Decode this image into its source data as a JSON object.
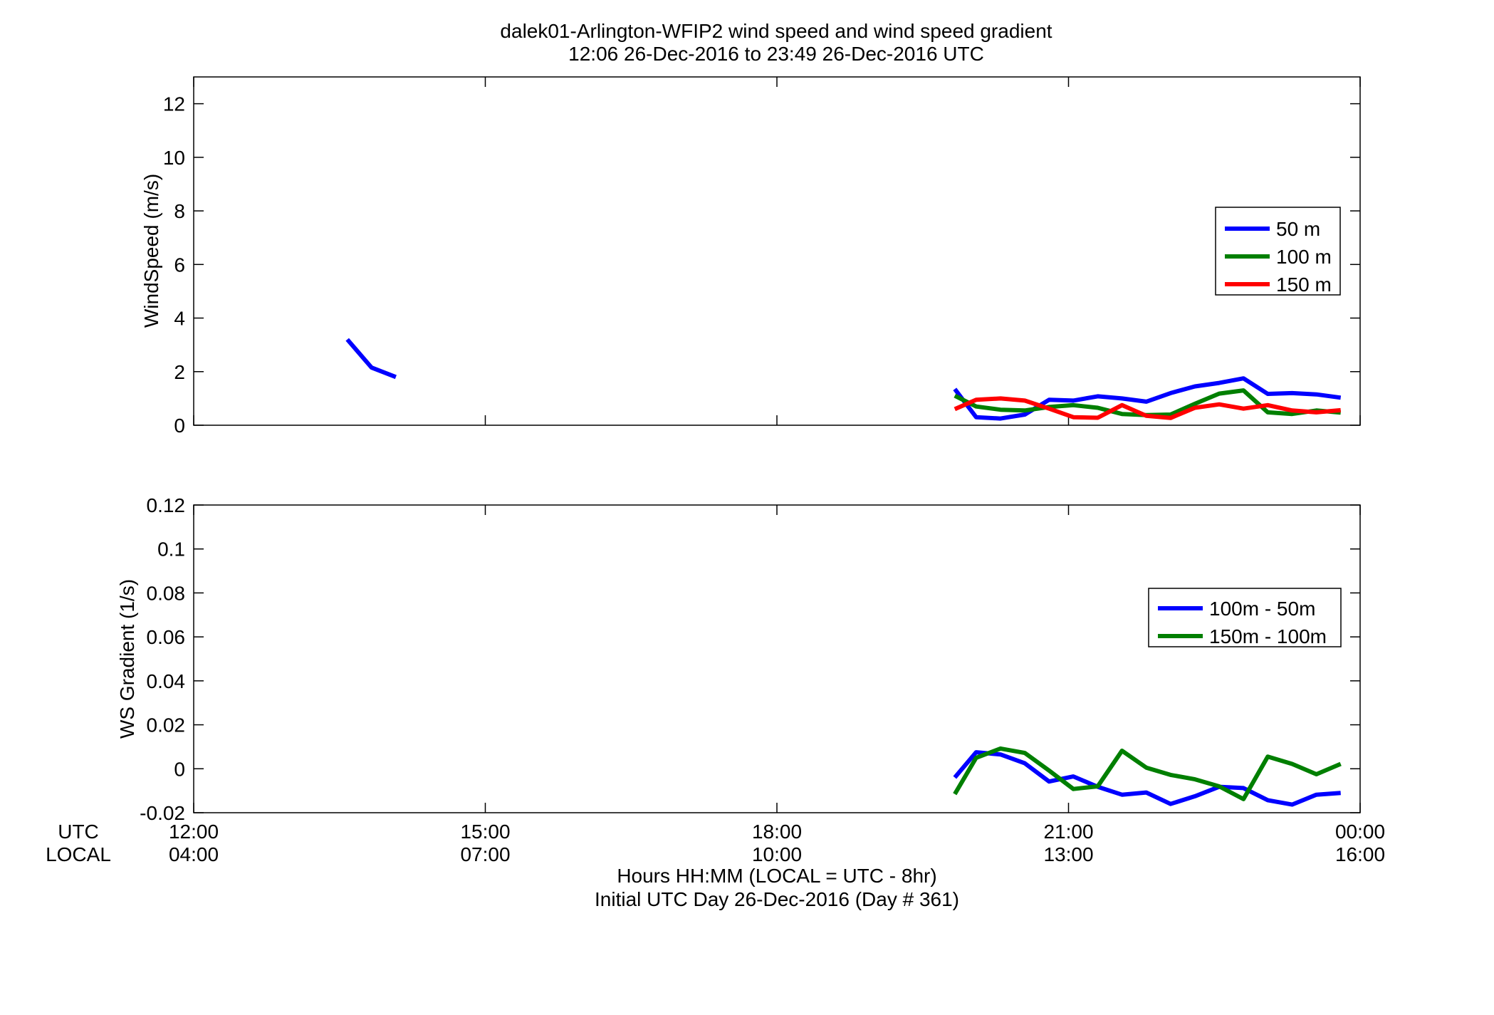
{
  "figure": {
    "title_line1": "dalek01-Arlington-WFIP2  wind speed and wind speed gradient",
    "title_line2": "12:06 26-Dec-2016 to 23:49 26-Dec-2016  UTC",
    "xlabel_line1": "Hours HH:MM  (LOCAL = UTC - 8hr)",
    "xlabel_line2": "Initial UTC Day 26-Dec-2016 (Day # 361)",
    "row_label_utc": "UTC",
    "row_label_local": "LOCAL",
    "utc_ticks": [
      "12:00",
      "15:00",
      "18:00",
      "21:00",
      "00:00"
    ],
    "local_ticks": [
      "04:00",
      "07:00",
      "10:00",
      "13:00",
      "16:00"
    ]
  },
  "colors": {
    "blue": "#0000ff",
    "green": "#007f00",
    "red": "#ff0000"
  },
  "chart_data": [
    {
      "type": "line",
      "ylabel": "WindSpeed (m/s)",
      "xlim": [
        12,
        24
      ],
      "ylim": [
        0,
        13
      ],
      "yticks": [
        0,
        2,
        4,
        6,
        8,
        10,
        12
      ],
      "ytick_labels": [
        "0",
        "2",
        "4",
        "6",
        "8",
        "10",
        "12"
      ],
      "legend_position": "right",
      "series": [
        {
          "name": "50 m",
          "color": "#0000ff",
          "segments": [
            [
              [
                13.58,
                3.2
              ],
              [
                13.83,
                2.15
              ],
              [
                14.08,
                1.8
              ]
            ],
            [
              [
                19.83,
                1.35
              ],
              [
                20.05,
                0.3
              ],
              [
                20.3,
                0.25
              ],
              [
                20.55,
                0.4
              ],
              [
                20.8,
                0.95
              ],
              [
                21.05,
                0.92
              ],
              [
                21.3,
                1.08
              ],
              [
                21.55,
                1.0
              ],
              [
                21.8,
                0.88
              ],
              [
                22.05,
                1.2
              ],
              [
                22.3,
                1.45
              ],
              [
                22.55,
                1.58
              ],
              [
                22.8,
                1.75
              ],
              [
                23.05,
                1.17
              ],
              [
                23.3,
                1.2
              ],
              [
                23.55,
                1.15
              ],
              [
                23.8,
                1.03
              ]
            ]
          ]
        },
        {
          "name": "100 m",
          "color": "#007f00",
          "segments": [
            [
              [
                19.83,
                1.1
              ],
              [
                20.05,
                0.7
              ],
              [
                20.3,
                0.58
              ],
              [
                20.55,
                0.55
              ],
              [
                20.8,
                0.68
              ],
              [
                21.05,
                0.75
              ],
              [
                21.3,
                0.65
              ],
              [
                21.55,
                0.42
              ],
              [
                21.8,
                0.38
              ],
              [
                22.05,
                0.4
              ],
              [
                22.3,
                0.8
              ],
              [
                22.55,
                1.18
              ],
              [
                22.8,
                1.3
              ],
              [
                23.05,
                0.48
              ],
              [
                23.3,
                0.42
              ],
              [
                23.55,
                0.55
              ],
              [
                23.8,
                0.47
              ]
            ]
          ]
        },
        {
          "name": "150 m",
          "color": "#ff0000",
          "segments": [
            [
              [
                19.83,
                0.6
              ],
              [
                20.05,
                0.95
              ],
              [
                20.3,
                1.0
              ],
              [
                20.55,
                0.92
              ],
              [
                20.8,
                0.62
              ],
              [
                21.05,
                0.3
              ],
              [
                21.3,
                0.28
              ],
              [
                21.55,
                0.75
              ],
              [
                21.8,
                0.35
              ],
              [
                22.05,
                0.27
              ],
              [
                22.3,
                0.65
              ],
              [
                22.55,
                0.78
              ],
              [
                22.8,
                0.62
              ],
              [
                23.05,
                0.75
              ],
              [
                23.3,
                0.55
              ],
              [
                23.55,
                0.48
              ],
              [
                23.8,
                0.56
              ]
            ]
          ]
        }
      ]
    },
    {
      "type": "line",
      "ylabel": "WS Gradient (1/s)",
      "xlim": [
        12,
        24
      ],
      "ylim": [
        -0.02,
        0.12
      ],
      "yticks": [
        -0.02,
        0,
        0.02,
        0.04,
        0.06,
        0.08,
        0.1,
        0.12
      ],
      "ytick_labels": [
        "-0.02",
        "0",
        "0.02",
        "0.04",
        "0.06",
        "0.08",
        "0.1",
        "0.12"
      ],
      "legend_position": "right",
      "series": [
        {
          "name": "100m - 50m",
          "color": "#0000ff",
          "segments": [
            [
              [
                19.83,
                -0.004
              ],
              [
                20.05,
                0.0075
              ],
              [
                20.3,
                0.0065
              ],
              [
                20.55,
                0.0025
              ],
              [
                20.8,
                -0.0058
              ],
              [
                21.05,
                -0.0035
              ],
              [
                21.3,
                -0.0082
              ],
              [
                21.55,
                -0.0118
              ],
              [
                21.8,
                -0.0108
              ],
              [
                22.05,
                -0.016
              ],
              [
                22.3,
                -0.0125
              ],
              [
                22.55,
                -0.0082
              ],
              [
                22.8,
                -0.0088
              ],
              [
                23.05,
                -0.0143
              ],
              [
                23.3,
                -0.0163
              ],
              [
                23.55,
                -0.0118
              ],
              [
                23.8,
                -0.011
              ]
            ]
          ]
        },
        {
          "name": "150m - 100m",
          "color": "#007f00",
          "segments": [
            [
              [
                19.83,
                -0.0115
              ],
              [
                20.05,
                0.005
              ],
              [
                20.3,
                0.0092
              ],
              [
                20.55,
                0.0072
              ],
              [
                20.8,
                -0.0008
              ],
              [
                21.05,
                -0.0092
              ],
              [
                21.3,
                -0.008
              ],
              [
                21.55,
                0.0082
              ],
              [
                21.8,
                0.0005
              ],
              [
                22.05,
                -0.0028
              ],
              [
                22.3,
                -0.0048
              ],
              [
                22.55,
                -0.008
              ],
              [
                22.8,
                -0.0138
              ],
              [
                23.05,
                0.0055
              ],
              [
                23.3,
                0.0022
              ],
              [
                23.55,
                -0.0025
              ],
              [
                23.8,
                0.0022
              ]
            ]
          ]
        }
      ]
    }
  ]
}
